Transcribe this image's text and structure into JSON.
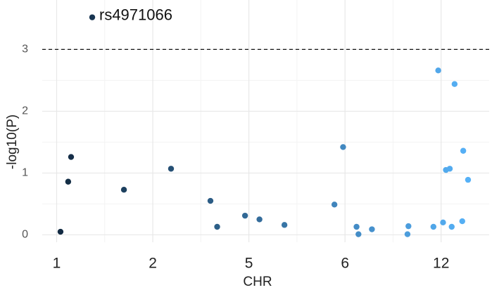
{
  "chart_data": {
    "type": "scatter",
    "x_label": "CHR",
    "y_label": "-log10(P)",
    "x": [
      1.37,
      1.04,
      1.12,
      1.15,
      1.7,
      2.19,
      2.6,
      2.67,
      2.96,
      3.11,
      3.37,
      3.89,
      3.98,
      4.12,
      4.14,
      4.28,
      4.66,
      4.65,
      4.92,
      4.97,
      5.02,
      5.05,
      5.09,
      5.11,
      5.14,
      5.22,
      5.23,
      5.28
    ],
    "y": [
      3.52,
      0.05,
      0.86,
      1.26,
      0.73,
      1.07,
      0.55,
      0.13,
      0.31,
      0.25,
      0.16,
      0.49,
      1.42,
      0.13,
      0.01,
      0.09,
      0.14,
      0.01,
      0.13,
      2.66,
      0.2,
      1.05,
      1.07,
      0.13,
      2.44,
      0.22,
      1.36,
      0.89
    ],
    "point_labels": [
      "rs4971066",
      null,
      null,
      null,
      null,
      null,
      null,
      null,
      null,
      null,
      null,
      null,
      null,
      null,
      null,
      null,
      null,
      null,
      null,
      null,
      null,
      null,
      null,
      null,
      null,
      null,
      null,
      null
    ],
    "color_scale": [
      "#132B43",
      "#56B1F7"
    ],
    "xlim": [
      0.85,
      5.5
    ],
    "xticks": [
      1,
      2,
      {
        "value": 3,
        "label": "5"
      },
      {
        "value": 4,
        "label": "6"
      },
      {
        "value": 5,
        "label": "12"
      }
    ],
    "ylim": [
      -0.12,
      3.8
    ],
    "yticks": [
      0,
      1,
      2,
      3
    ],
    "hline": 3,
    "grid": true
  }
}
